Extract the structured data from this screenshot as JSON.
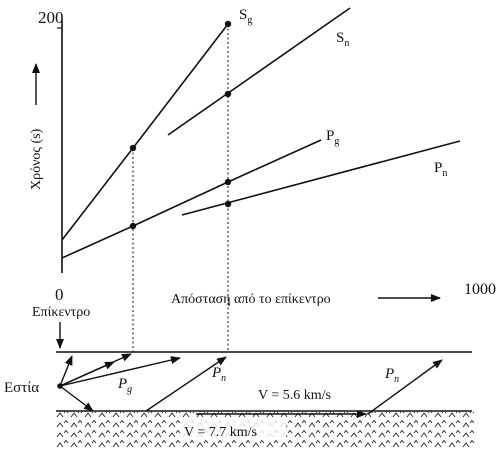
{
  "chart_data": {
    "type": "line",
    "y_axis": {
      "label": "Χρόνος (s)",
      "tick_label": "200"
    },
    "x_axis": {
      "start_label": "0",
      "end_label": "1000",
      "caption": "Απόσταση από το επίκεντρο"
    },
    "series": [
      {
        "name": "Sg"
      },
      {
        "name": "Sn"
      },
      {
        "name": "Pg"
      },
      {
        "name": "Pn"
      }
    ]
  },
  "section": {
    "epicenter_label": "Επίκεντρο",
    "focus_label": "Εστία",
    "ray_labels": [
      "Pg",
      "Pn",
      "Pn"
    ],
    "upper_layer_velocity": "V = 5.6 km/s",
    "lower_layer_velocity": "V = 7.7 km/s"
  }
}
